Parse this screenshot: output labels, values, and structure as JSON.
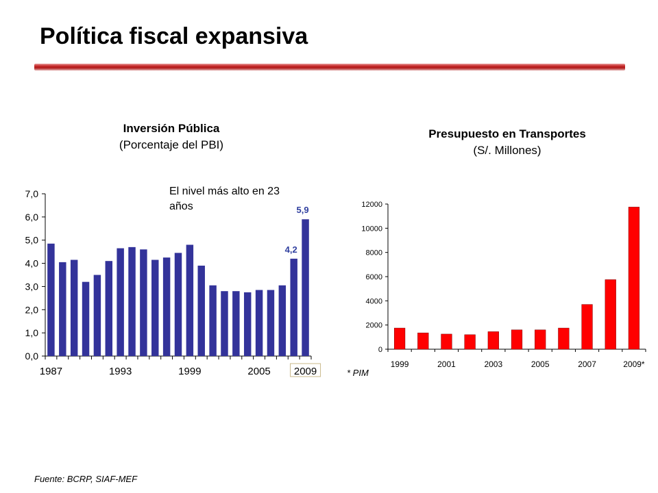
{
  "slide": {
    "title": "Política fiscal expansiva",
    "source": "Fuente: BCRP, SIAF-MEF"
  },
  "chart_data": [
    {
      "type": "bar",
      "title": "Inversión Pública",
      "subtitle": "(Porcentaje del PBI)",
      "categories": [
        "1987",
        "1988",
        "1989",
        "1990",
        "1991",
        "1992",
        "1993",
        "1994",
        "1995",
        "1996",
        "1997",
        "1998",
        "1999",
        "2000",
        "2001",
        "2002",
        "2003",
        "2004",
        "2005",
        "2006",
        "2007",
        "2008",
        "2009"
      ],
      "values": [
        4.85,
        4.05,
        4.15,
        3.2,
        3.5,
        4.1,
        4.65,
        4.7,
        4.6,
        4.15,
        4.25,
        4.45,
        4.8,
        3.9,
        3.05,
        2.8,
        2.8,
        2.75,
        2.85,
        2.85,
        3.05,
        4.2,
        5.9
      ],
      "x_tick_labels": [
        "1987",
        "1993",
        "1999",
        "2005",
        "2009"
      ],
      "y_tick_labels": [
        "0,0",
        "1,0",
        "2,0",
        "3,0",
        "4,0",
        "5,0",
        "6,0",
        "7,0"
      ],
      "ylim": [
        0,
        7
      ],
      "grid": false,
      "bar_color": "#33339a",
      "data_labels": [
        {
          "category": "2008",
          "text": "4,2"
        },
        {
          "category": "2009",
          "text": "5,9"
        }
      ],
      "annotation": "El nivel más alto en 23 años",
      "label_color": "#2f3f9f"
    },
    {
      "type": "bar",
      "title": "Presupuesto en Transportes",
      "subtitle": "(S/. Millones)",
      "categories": [
        "1999",
        "2000",
        "2001",
        "2002",
        "2003",
        "2004",
        "2005",
        "2006",
        "2007",
        "2008",
        "2009*"
      ],
      "values": [
        1750,
        1350,
        1250,
        1200,
        1450,
        1600,
        1600,
        1750,
        3700,
        5750,
        11750
      ],
      "x_tick_labels": [
        "1999",
        "2001",
        "2003",
        "2005",
        "2007",
        "2009*"
      ],
      "y_tick_labels": [
        "0",
        "2000",
        "4000",
        "6000",
        "8000",
        "10000",
        "12000"
      ],
      "ylim": [
        0,
        12000
      ],
      "grid": false,
      "bar_color": "#ff0000",
      "footnote": "* PIM"
    }
  ]
}
